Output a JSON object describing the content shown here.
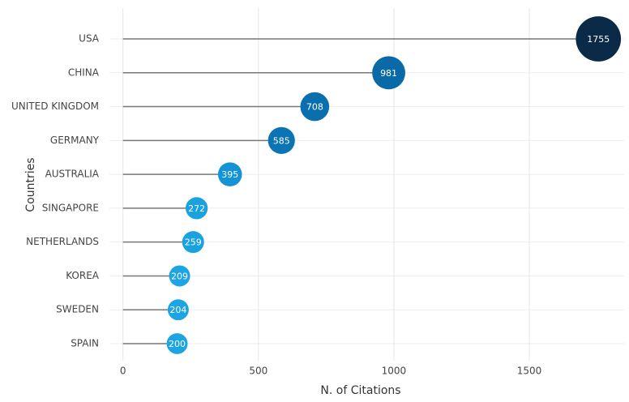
{
  "chart_data": {
    "type": "lollipop",
    "x_label": "N. of Citations",
    "y_label": "Countries",
    "categories": [
      "USA",
      "CHINA",
      "UNITED KINGDOM",
      "GERMANY",
      "AUSTRALIA",
      "SINGAPORE",
      "NETHERLANDS",
      "KOREA",
      "SWEDEN",
      "SPAIN"
    ],
    "values": [
      1755,
      981,
      708,
      585,
      395,
      272,
      259,
      209,
      204,
      200
    ],
    "colors": [
      "#0b2a48",
      "#0a6aa8",
      "#0a6fae",
      "#0b74b4",
      "#1494d6",
      "#1aa1e0",
      "#1aa1e0",
      "#1ca4e3",
      "#1ca4e3",
      "#1ca4e3"
    ],
    "stem_color": "#777777",
    "xlim": [
      -50,
      1850
    ],
    "xticks": [
      0,
      500,
      1000,
      1500
    ],
    "grid": true
  }
}
